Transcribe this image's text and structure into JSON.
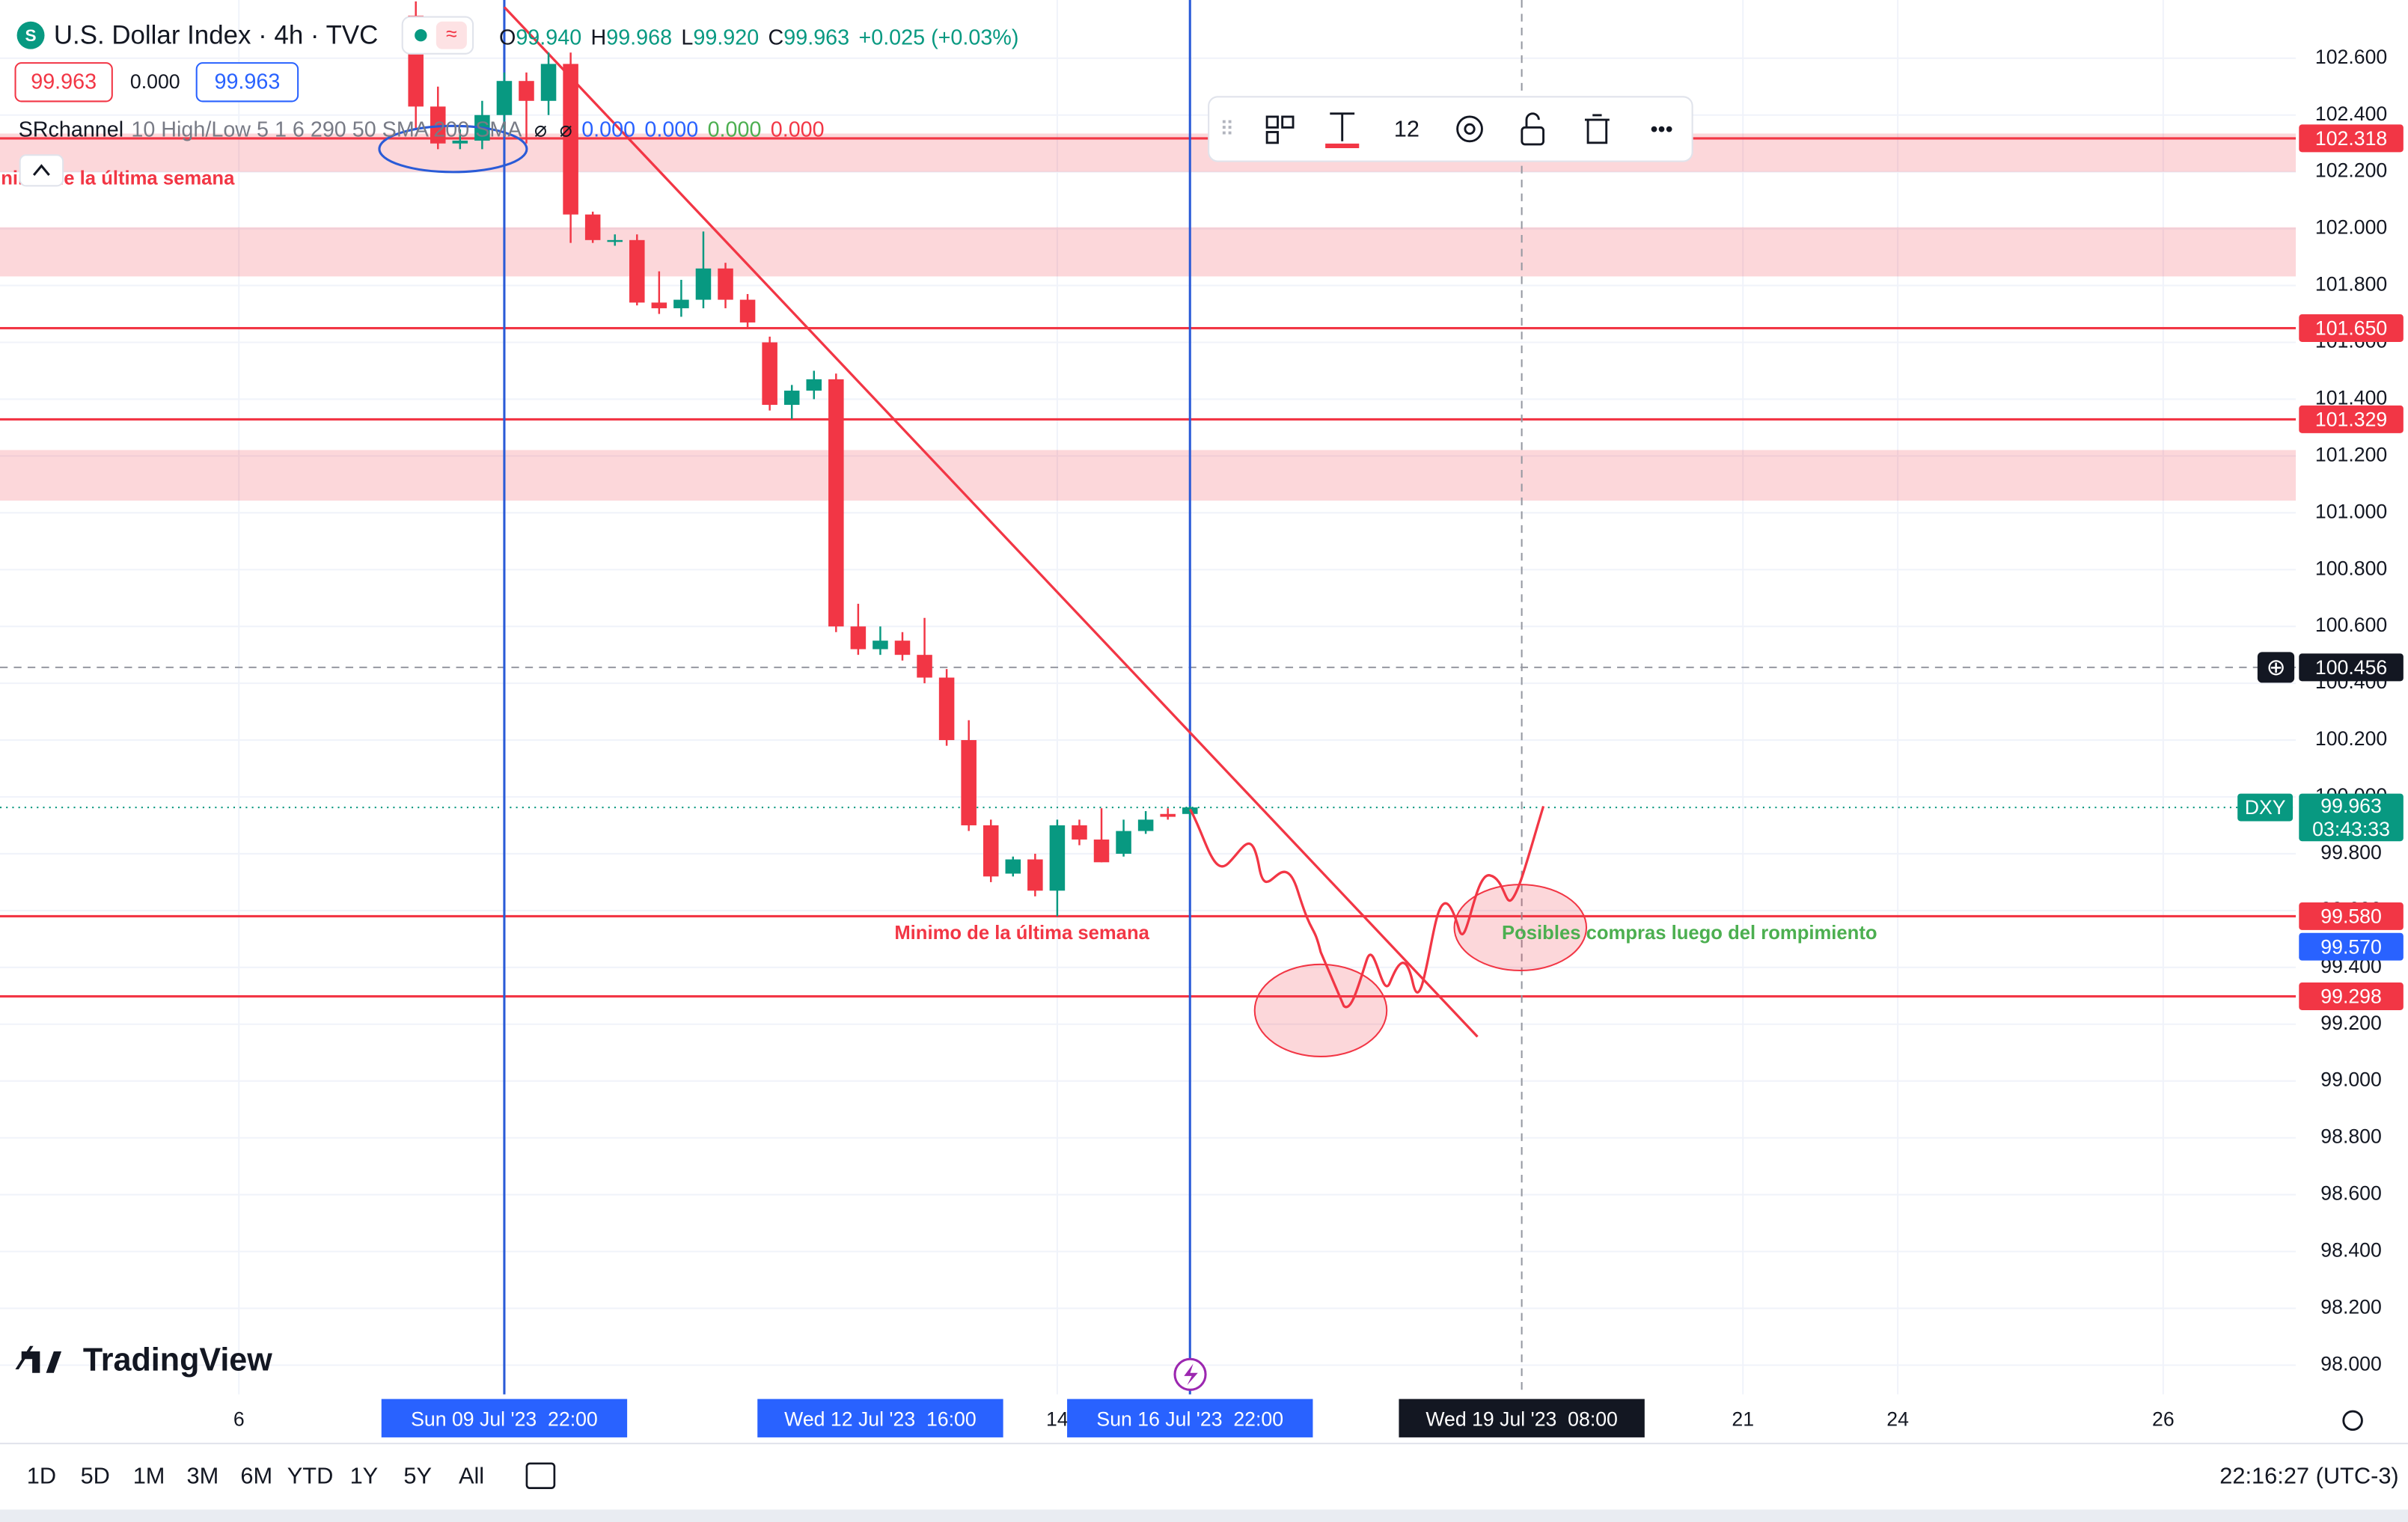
{
  "header": {
    "title": "U.S. Dollar Index · 4h · TVC",
    "ohlc": [
      {
        "k": "O",
        "v": "99.940"
      },
      {
        "k": "H",
        "v": "99.968"
      },
      {
        "k": "L",
        "v": "99.920"
      },
      {
        "k": "C",
        "v": "99.963"
      }
    ],
    "change": "+0.025 (+0.03%)",
    "bid": "99.963",
    "spread": "0.000",
    "ask": "99.963",
    "indicator": {
      "name": "SRchannel",
      "params": "10 High/Low 5 1 6 290 50 SMA 200 SMA",
      "values": [
        "0.000",
        "0.000",
        "0.000",
        "0.000"
      ]
    }
  },
  "toolbar": {
    "font_size": "12"
  },
  "logo": "TradingView",
  "footer": {
    "ranges": [
      "1D",
      "5D",
      "1M",
      "3M",
      "6M",
      "YTD",
      "1Y",
      "5Y",
      "All"
    ],
    "clock": "22:16:27 (UTC-3)"
  },
  "chart_data": {
    "type": "candlestick",
    "up_color": "#089981",
    "down_color": "#f23645",
    "grid": true,
    "x": [
      0,
      1,
      2,
      3,
      4,
      5,
      6,
      7,
      8,
      9,
      10,
      11,
      12,
      13,
      14,
      15,
      16,
      17,
      18,
      19,
      20,
      21,
      22,
      23,
      24,
      25,
      26,
      27,
      28,
      29,
      30,
      31,
      32,
      33,
      34,
      35
    ],
    "open": [
      102.75,
      102.43,
      102.3,
      102.31,
      102.4,
      102.52,
      102.45,
      102.58,
      102.05,
      101.96,
      101.96,
      101.74,
      101.72,
      101.75,
      101.86,
      101.75,
      101.6,
      101.38,
      101.43,
      101.47,
      100.6,
      100.52,
      100.55,
      100.5,
      100.42,
      100.2,
      99.9,
      99.73,
      99.78,
      99.67,
      99.9,
      99.85,
      99.8,
      99.88,
      99.94,
      99.94
    ],
    "high": [
      102.8,
      102.5,
      102.35,
      102.45,
      102.55,
      102.55,
      102.62,
      102.62,
      102.06,
      101.98,
      101.98,
      101.85,
      101.82,
      101.99,
      101.88,
      101.77,
      101.62,
      101.45,
      101.5,
      101.49,
      100.68,
      100.6,
      100.58,
      100.63,
      100.45,
      100.27,
      99.92,
      99.79,
      99.8,
      99.92,
      99.92,
      99.96,
      99.92,
      99.95,
      99.96,
      99.968
    ],
    "low": [
      102.35,
      102.28,
      102.28,
      102.28,
      102.35,
      102.3,
      102.4,
      101.95,
      101.95,
      101.94,
      101.73,
      101.7,
      101.69,
      101.72,
      101.72,
      101.65,
      101.36,
      101.33,
      101.4,
      100.58,
      100.5,
      100.5,
      100.48,
      100.4,
      100.18,
      99.88,
      99.7,
      99.72,
      99.65,
      99.58,
      99.83,
      99.77,
      99.79,
      99.87,
      99.92,
      99.92
    ],
    "close": [
      102.43,
      102.3,
      102.31,
      102.4,
      102.52,
      102.45,
      102.58,
      102.05,
      101.96,
      101.96,
      101.74,
      101.72,
      101.75,
      101.86,
      101.75,
      101.67,
      101.38,
      101.43,
      101.47,
      100.6,
      100.52,
      100.55,
      100.5,
      100.42,
      100.2,
      99.9,
      99.72,
      99.78,
      99.67,
      99.9,
      99.85,
      99.77,
      99.88,
      99.92,
      99.93,
      99.963
    ],
    "xlim": [
      -18.8,
      85
    ],
    "xticks": [
      {
        "value": -8,
        "label": "6"
      },
      {
        "value": 29,
        "label": "14"
      },
      {
        "value": 60,
        "label": "21"
      },
      {
        "value": 67,
        "label": "24"
      },
      {
        "value": 79,
        "label": "26"
      }
    ],
    "ylim": [
      97.897,
      102.805
    ],
    "yticks": [
      {
        "value": 98.0,
        "label": "98.000"
      },
      {
        "value": 98.2,
        "label": "98.200"
      },
      {
        "value": 98.4,
        "label": "98.400"
      },
      {
        "value": 98.6,
        "label": "98.600"
      },
      {
        "value": 98.8,
        "label": "98.800"
      },
      {
        "value": 99.0,
        "label": "99.000"
      },
      {
        "value": 99.2,
        "label": "99.200"
      },
      {
        "value": 99.4,
        "label": "99.400"
      },
      {
        "value": 99.6,
        "label": "99.600"
      },
      {
        "value": 99.8,
        "label": "99.800"
      },
      {
        "value": 100.0,
        "label": "100.000"
      },
      {
        "value": 100.2,
        "label": "100.200"
      },
      {
        "value": 100.4,
        "label": "100.400"
      },
      {
        "value": 100.6,
        "label": "100.600"
      },
      {
        "value": 100.8,
        "label": "100.800"
      },
      {
        "value": 101.0,
        "label": "101.000"
      },
      {
        "value": 101.2,
        "label": "101.200"
      },
      {
        "value": 101.4,
        "label": "101.400"
      },
      {
        "value": 101.6,
        "label": "101.600"
      },
      {
        "value": 101.8,
        "label": "101.800"
      },
      {
        "value": 102.0,
        "label": "102.000"
      },
      {
        "value": 102.2,
        "label": "102.200"
      },
      {
        "value": 102.4,
        "label": "102.400"
      },
      {
        "value": 102.6,
        "label": "102.600"
      }
    ],
    "zones": [
      [
        102.2,
        102.335
      ],
      [
        101.832,
        102.005
      ],
      [
        101.043,
        101.221
      ]
    ],
    "levels": {
      "color": "#f23645",
      "values": [
        102.318,
        101.65,
        101.329,
        99.58,
        99.298
      ],
      "labels": [
        "102.318",
        "101.650",
        "101.329",
        "99.580",
        "99.298"
      ]
    },
    "alert": {
      "value": 99.57,
      "label": "99.570",
      "color": "#2962ff"
    },
    "last": {
      "value": 99.963,
      "label": "99.963",
      "symbol": "DXY",
      "countdown": "03:43:33",
      "color": "#089981"
    },
    "crosshair": {
      "x": 50,
      "y": 100.456,
      "x_label": "Wed 19 Jul '23  08:00",
      "y_label": "100.456"
    },
    "vlines": {
      "color": "#2a5bd7",
      "items": [
        {
          "x": 4,
          "label": "Sun 09 Jul '23  22:00"
        },
        {
          "x": 35,
          "label": "Sun 16 Jul '23  22:00"
        }
      ]
    },
    "highlighted_x": [
      {
        "x": 21,
        "label": "Wed 12 Jul '23  16:00"
      }
    ],
    "trendline": {
      "color": "#f23645",
      "x": [
        4,
        48
      ],
      "y": [
        102.78,
        99.156
      ]
    },
    "annotations": [
      {
        "text": "Minimo de la última semana",
        "x": 27.4,
        "y": 99.518,
        "anchor": "middle",
        "color": "#f23645"
      },
      {
        "text": "Posibles compras luego del rompimiento",
        "x": 49.1,
        "y": 99.518,
        "anchor": "start",
        "color": "#4caf50"
      },
      {
        "text": "Minimo de la última semana",
        "x": -8.2,
        "y": 102.173,
        "anchor": "end",
        "color": "#f23645"
      }
    ]
  }
}
